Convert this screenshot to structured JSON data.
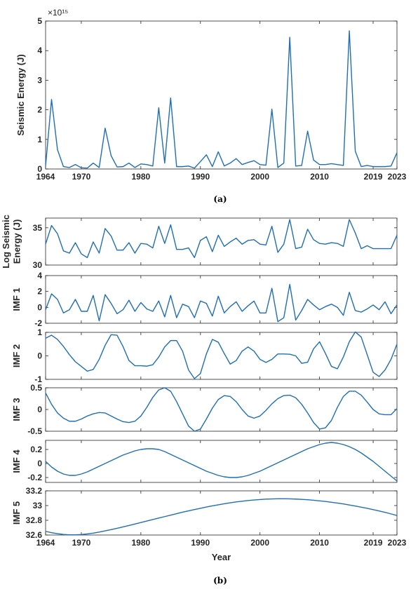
{
  "figure": {
    "caption_a": "(a)",
    "caption_b": "(b)",
    "line_color": "#1f6fb2",
    "axis_color": "#262626"
  },
  "chart_data": [
    {
      "id": "energy",
      "type": "line",
      "ylabel": "Seismic Energy (J)",
      "exponent_label": "×10¹⁵",
      "xlim": [
        1964,
        2023
      ],
      "ylim": [
        0,
        5
      ],
      "yticks": [
        0,
        1,
        2,
        3,
        4,
        5
      ],
      "xticks": [
        1964,
        1970,
        1980,
        1990,
        2000,
        2010,
        2019,
        2023
      ],
      "x": [
        1964,
        1965,
        1966,
        1967,
        1968,
        1969,
        1970,
        1971,
        1972,
        1973,
        1974,
        1975,
        1976,
        1977,
        1978,
        1979,
        1980,
        1981,
        1982,
        1983,
        1984,
        1985,
        1986,
        1987,
        1988,
        1989,
        1990,
        1991,
        1992,
        1993,
        1994,
        1995,
        1996,
        1997,
        1998,
        1999,
        2000,
        2001,
        2002,
        2003,
        2004,
        2005,
        2006,
        2007,
        2008,
        2009,
        2010,
        2011,
        2012,
        2013,
        2014,
        2015,
        2016,
        2017,
        2018,
        2019,
        2020,
        2021,
        2022,
        2023
      ],
      "y": [
        0.1,
        2.35,
        0.65,
        0.08,
        0.05,
        0.15,
        0.04,
        0.03,
        0.2,
        0.05,
        1.38,
        0.45,
        0.07,
        0.08,
        0.2,
        0.05,
        0.17,
        0.15,
        0.1,
        2.07,
        0.2,
        2.4,
        0.08,
        0.08,
        0.1,
        0.03,
        0.25,
        0.48,
        0.08,
        0.58,
        0.1,
        0.2,
        0.35,
        0.15,
        0.22,
        0.28,
        0.15,
        0.13,
        2.02,
        0.05,
        0.2,
        4.45,
        0.1,
        0.12,
        1.28,
        0.3,
        0.15,
        0.15,
        0.18,
        0.15,
        0.12,
        4.67,
        0.6,
        0.08,
        0.12,
        0.08,
        0.08,
        0.08,
        0.1,
        0.55
      ]
    },
    {
      "id": "log",
      "type": "line",
      "ylabel": "Log Seismic Energy (J)",
      "xlim": [
        1964,
        2023
      ],
      "ylim": [
        30,
        36.3
      ],
      "yticks": [
        30,
        35
      ],
      "x": [
        1964,
        1965,
        1966,
        1967,
        1968,
        1969,
        1970,
        1971,
        1972,
        1973,
        1974,
        1975,
        1976,
        1977,
        1978,
        1979,
        1980,
        1981,
        1982,
        1983,
        1984,
        1985,
        1986,
        1987,
        1988,
        1989,
        1990,
        1991,
        1992,
        1993,
        1994,
        1995,
        1996,
        1997,
        1998,
        1999,
        2000,
        2001,
        2002,
        2003,
        2004,
        2005,
        2006,
        2007,
        2008,
        2009,
        2010,
        2011,
        2012,
        2013,
        2014,
        2015,
        2016,
        2017,
        2018,
        2019,
        2020,
        2021,
        2022,
        2023
      ],
      "y": [
        32.8,
        35.3,
        34.2,
        31.9,
        31.6,
        33.0,
        31.5,
        31.0,
        33.1,
        31.6,
        34.9,
        33.9,
        32.0,
        32.0,
        33.0,
        31.6,
        32.9,
        32.8,
        32.3,
        35.2,
        32.9,
        35.4,
        32.1,
        32.1,
        32.3,
        31.0,
        33.3,
        33.8,
        31.8,
        34.0,
        32.5,
        33.1,
        33.6,
        32.8,
        33.3,
        33.4,
        32.8,
        32.7,
        35.2,
        31.7,
        32.8,
        36.1,
        32.2,
        32.4,
        34.8,
        33.4,
        32.9,
        32.8,
        33.0,
        32.9,
        32.5,
        36.1,
        34.3,
        32.2,
        32.6,
        32.2,
        32.2,
        32.2,
        32.2,
        34.0
      ]
    },
    {
      "id": "imf1",
      "type": "line",
      "ylabel": "IMF 1",
      "xlim": [
        1964,
        2023
      ],
      "ylim": [
        -2,
        4
      ],
      "yticks": [
        -2,
        0,
        2,
        4
      ],
      "x": [
        1964,
        1965,
        1966,
        1967,
        1968,
        1969,
        1970,
        1971,
        1972,
        1973,
        1974,
        1975,
        1976,
        1977,
        1978,
        1979,
        1980,
        1981,
        1982,
        1983,
        1984,
        1985,
        1986,
        1987,
        1988,
        1989,
        1990,
        1991,
        1992,
        1993,
        1994,
        1995,
        1996,
        1997,
        1998,
        1999,
        2000,
        2001,
        2002,
        2003,
        2004,
        2005,
        2006,
        2007,
        2008,
        2009,
        2010,
        2011,
        2012,
        2013,
        2014,
        2015,
        2016,
        2017,
        2018,
        2019,
        2020,
        2021,
        2022,
        2023
      ],
      "y": [
        -0.3,
        1.7,
        1.0,
        -0.7,
        -0.3,
        1.0,
        -0.5,
        -0.5,
        1.5,
        -1.7,
        1.6,
        0.5,
        -0.8,
        -0.3,
        0.9,
        -0.5,
        0.6,
        -0.2,
        -0.5,
        0.8,
        -1.2,
        1.5,
        -1.3,
        0.4,
        0.1,
        -1.3,
        0.8,
        0.5,
        -1.1,
        1.4,
        -0.7,
        0.1,
        0.7,
        -0.5,
        0.2,
        0.8,
        -0.7,
        -0.7,
        2.4,
        -1.8,
        -1.3,
        2.9,
        -1.6,
        -0.4,
        1.0,
        0.3,
        -0.3,
        0.1,
        0.4,
        0.0,
        -1.0,
        1.9,
        -0.4,
        -0.6,
        -0.2,
        0.3,
        -0.3,
        0.7,
        -0.8,
        0.3
      ]
    },
    {
      "id": "imf2",
      "type": "line",
      "ylabel": "IMF 2",
      "xlim": [
        1964,
        2023
      ],
      "ylim": [
        -1,
        1
      ],
      "yticks": [
        -1,
        0,
        1
      ],
      "x": [
        1964,
        1965,
        1966,
        1967,
        1968,
        1969,
        1970,
        1971,
        1972,
        1973,
        1974,
        1975,
        1976,
        1977,
        1978,
        1979,
        1980,
        1981,
        1982,
        1983,
        1984,
        1985,
        1986,
        1987,
        1988,
        1989,
        1990,
        1991,
        1992,
        1993,
        1994,
        1995,
        1996,
        1997,
        1998,
        1999,
        2000,
        2001,
        2002,
        2003,
        2004,
        2005,
        2006,
        2007,
        2008,
        2009,
        2010,
        2011,
        2012,
        2013,
        2014,
        2015,
        2016,
        2017,
        2018,
        2019,
        2020,
        2021,
        2022,
        2023
      ],
      "y": [
        0.75,
        0.88,
        0.7,
        0.4,
        0.05,
        -0.25,
        -0.45,
        -0.65,
        -0.58,
        -0.15,
        0.45,
        0.9,
        0.88,
        0.4,
        -0.2,
        -0.42,
        -0.42,
        -0.44,
        -0.38,
        -0.05,
        0.38,
        0.65,
        0.65,
        0.2,
        -0.6,
        -0.97,
        -0.75,
        0.08,
        0.7,
        0.58,
        0.1,
        -0.35,
        -0.2,
        0.2,
        0.38,
        0.2,
        -0.15,
        -0.28,
        -0.15,
        0.08,
        0.08,
        0.07,
        0.0,
        -0.32,
        -0.27,
        0.3,
        0.6,
        0.1,
        -0.45,
        -0.55,
        -0.05,
        0.6,
        1.02,
        0.8,
        0.05,
        -0.7,
        -0.88,
        -0.6,
        -0.15,
        0.5
      ]
    },
    {
      "id": "imf3",
      "type": "line",
      "ylabel": "IMF 3",
      "xlim": [
        1964,
        2023
      ],
      "ylim": [
        -0.5,
        0.5
      ],
      "yticks": [
        -0.5,
        0,
        0.5
      ],
      "x": [
        1964,
        1965,
        1966,
        1967,
        1968,
        1969,
        1970,
        1971,
        1972,
        1973,
        1974,
        1975,
        1976,
        1977,
        1978,
        1979,
        1980,
        1981,
        1982,
        1983,
        1984,
        1985,
        1986,
        1987,
        1988,
        1989,
        1990,
        1991,
        1992,
        1993,
        1994,
        1995,
        1996,
        1997,
        1998,
        1999,
        2000,
        2001,
        2002,
        2003,
        2004,
        2005,
        2006,
        2007,
        2008,
        2009,
        2010,
        2011,
        2012,
        2013,
        2014,
        2015,
        2016,
        2017,
        2018,
        2019,
        2020,
        2021,
        2022,
        2023
      ],
      "y": [
        0.38,
        0.12,
        -0.08,
        -0.2,
        -0.27,
        -0.27,
        -0.22,
        -0.15,
        -0.1,
        -0.07,
        -0.08,
        -0.15,
        -0.22,
        -0.28,
        -0.3,
        -0.27,
        -0.15,
        0.05,
        0.28,
        0.45,
        0.5,
        0.42,
        0.18,
        -0.1,
        -0.38,
        -0.5,
        -0.45,
        -0.22,
        0.03,
        0.23,
        0.32,
        0.3,
        0.18,
        0.0,
        -0.15,
        -0.2,
        -0.15,
        -0.02,
        0.13,
        0.25,
        0.32,
        0.33,
        0.27,
        0.12,
        -0.08,
        -0.3,
        -0.45,
        -0.42,
        -0.25,
        0.05,
        0.3,
        0.42,
        0.42,
        0.33,
        0.17,
        0.0,
        -0.1,
        -0.12,
        -0.12,
        0.02
      ]
    },
    {
      "id": "imf4",
      "type": "line",
      "ylabel": "IMF 4",
      "xlim": [
        1964,
        2023
      ],
      "ylim": [
        -0.27,
        0.33
      ],
      "yticks": [
        -0.2,
        0,
        0.2
      ],
      "x": [
        1964,
        1965,
        1966,
        1967,
        1968,
        1969,
        1970,
        1971,
        1972,
        1973,
        1974,
        1975,
        1976,
        1977,
        1978,
        1979,
        1980,
        1981,
        1982,
        1983,
        1984,
        1985,
        1986,
        1987,
        1988,
        1989,
        1990,
        1991,
        1992,
        1993,
        1994,
        1995,
        1996,
        1997,
        1998,
        1999,
        2000,
        2001,
        2002,
        2003,
        2004,
        2005,
        2006,
        2007,
        2008,
        2009,
        2010,
        2011,
        2012,
        2013,
        2014,
        2015,
        2016,
        2017,
        2018,
        2019,
        2020,
        2021,
        2022,
        2023
      ],
      "y": [
        0.03,
        -0.05,
        -0.11,
        -0.15,
        -0.17,
        -0.17,
        -0.15,
        -0.12,
        -0.08,
        -0.04,
        0.0,
        0.04,
        0.08,
        0.12,
        0.15,
        0.18,
        0.2,
        0.21,
        0.21,
        0.2,
        0.17,
        0.13,
        0.09,
        0.05,
        0.01,
        -0.03,
        -0.07,
        -0.11,
        -0.14,
        -0.17,
        -0.19,
        -0.2,
        -0.2,
        -0.19,
        -0.17,
        -0.14,
        -0.11,
        -0.07,
        -0.03,
        0.01,
        0.05,
        0.09,
        0.13,
        0.17,
        0.21,
        0.24,
        0.27,
        0.29,
        0.3,
        0.29,
        0.27,
        0.24,
        0.2,
        0.15,
        0.09,
        0.03,
        -0.04,
        -0.11,
        -0.18,
        -0.25
      ]
    },
    {
      "id": "imf5",
      "type": "line",
      "ylabel": "IMF 5",
      "xlabel": "Year",
      "xlim": [
        1964,
        2023
      ],
      "ylim": [
        32.6,
        33.2
      ],
      "yticks": [
        32.6,
        32.8,
        33,
        33.2
      ],
      "xticks": [
        1964,
        1970,
        1980,
        1990,
        2000,
        2010,
        2019,
        2023
      ],
      "x": [
        1964,
        1965,
        1966,
        1967,
        1968,
        1969,
        1970,
        1971,
        1972,
        1973,
        1974,
        1975,
        1976,
        1977,
        1978,
        1979,
        1980,
        1981,
        1982,
        1983,
        1984,
        1985,
        1986,
        1987,
        1988,
        1989,
        1990,
        1991,
        1992,
        1993,
        1994,
        1995,
        1996,
        1997,
        1998,
        1999,
        2000,
        2001,
        2002,
        2003,
        2004,
        2005,
        2006,
        2007,
        2008,
        2009,
        2010,
        2011,
        2012,
        2013,
        2014,
        2015,
        2016,
        2017,
        2018,
        2019,
        2020,
        2021,
        2022,
        2023
      ],
      "y": [
        32.65,
        32.632,
        32.618,
        32.608,
        32.603,
        32.603,
        32.607,
        32.615,
        32.626,
        32.64,
        32.656,
        32.673,
        32.691,
        32.71,
        32.729,
        32.749,
        32.77,
        32.79,
        32.81,
        32.83,
        32.85,
        32.87,
        32.89,
        32.91,
        32.928,
        32.946,
        32.963,
        32.98,
        32.996,
        33.01,
        33.024,
        33.037,
        33.049,
        33.059,
        33.068,
        33.076,
        33.082,
        33.087,
        33.09,
        33.092,
        33.092,
        33.091,
        33.088,
        33.084,
        33.079,
        33.072,
        33.064,
        33.055,
        33.045,
        33.034,
        33.022,
        33.008,
        32.994,
        32.978,
        32.962,
        32.945,
        32.927,
        32.908,
        32.887,
        32.865
      ]
    }
  ]
}
